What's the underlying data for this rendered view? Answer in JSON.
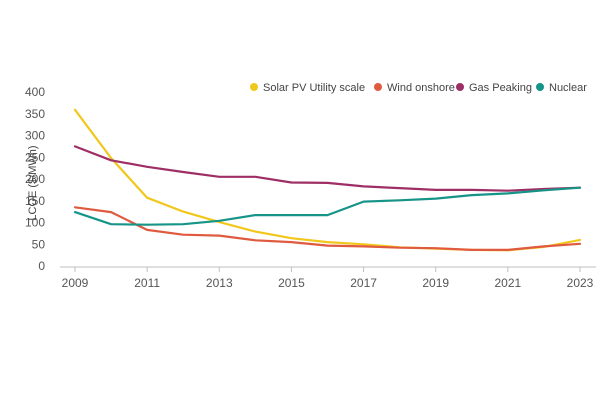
{
  "chart_data": {
    "type": "line",
    "title": "",
    "xlabel": "",
    "ylabel": "LCOE ($/MWh)",
    "x": [
      2009,
      2010,
      2011,
      2012,
      2013,
      2014,
      2015,
      2016,
      2017,
      2018,
      2019,
      2020,
      2021,
      2022,
      2023
    ],
    "x_tick_labels": [
      "2009",
      "2011",
      "2013",
      "2015",
      "2017",
      "2019",
      "2021",
      "2023"
    ],
    "xlim": [
      2009,
      2023
    ],
    "ylim": [
      0,
      400
    ],
    "y_ticks": [
      0,
      50,
      100,
      150,
      200,
      250,
      300,
      350,
      400
    ],
    "grid": false,
    "legend_position": "top-right",
    "series": [
      {
        "name": "Solar PV Utility scale",
        "color": "#f2c71b",
        "values": [
          359,
          248,
          157,
          125,
          101,
          79,
          64,
          55,
          50,
          43,
          40,
          37,
          36,
          44,
          60
        ]
      },
      {
        "name": "Wind onshore",
        "color": "#e05a3f",
        "values": [
          135,
          124,
          83,
          72,
          70,
          59,
          55,
          47,
          45,
          42,
          41,
          37,
          37,
          45,
          51
        ]
      },
      {
        "name": "Gas Peaking",
        "color": "#9e2f66",
        "values": [
          275,
          243,
          228,
          216,
          205,
          205,
          192,
          191,
          183,
          179,
          175,
          175,
          173,
          177,
          180
        ]
      },
      {
        "name": "Nuclear",
        "color": "#179488",
        "values": [
          124,
          96,
          95,
          96,
          104,
          117,
          117,
          117,
          148,
          151,
          155,
          163,
          167,
          174,
          180
        ]
      }
    ]
  }
}
